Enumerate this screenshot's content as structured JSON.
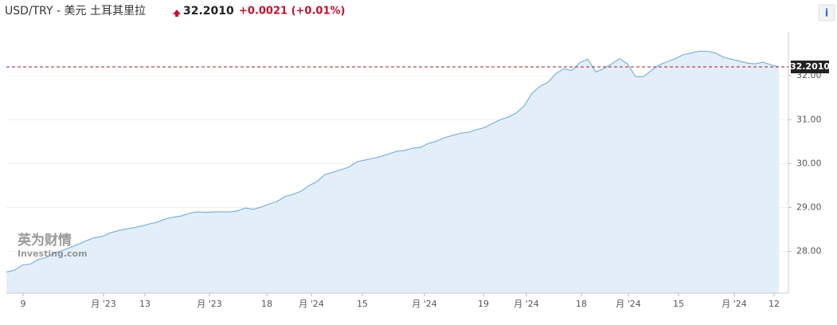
{
  "chart_data": {
    "type": "area",
    "title": "USD/TRY - 美元 土耳其里拉",
    "last_price": {
      "value": 32.201,
      "label": "32.2010"
    },
    "change": "+0.0021 (+0.01%)",
    "info_button": "i",
    "watermark": [
      "英为财情",
      "Investing.com"
    ],
    "color": "#7eb1dd",
    "fill": "#e4eef8",
    "grid": true,
    "x": [
      0,
      1,
      2,
      3,
      4,
      5,
      6,
      7,
      8,
      9,
      10,
      11,
      12,
      13,
      14,
      15,
      16,
      17,
      18,
      19,
      20,
      21,
      22,
      23,
      24,
      25,
      26,
      27,
      28,
      29,
      30,
      31,
      32,
      33,
      34,
      35,
      36,
      37,
      38,
      39,
      40,
      41,
      42,
      43,
      44,
      45,
      46,
      47,
      48,
      49,
      50,
      51,
      52,
      53,
      54,
      55,
      56,
      57,
      58,
      59,
      60,
      61,
      62,
      63,
      64,
      65,
      66,
      67,
      68,
      69,
      70,
      71,
      72,
      73,
      74,
      75,
      76,
      77,
      78,
      79,
      80,
      81,
      82,
      83,
      84,
      85,
      86,
      87,
      88,
      89,
      90,
      91,
      92,
      93,
      94,
      95,
      96,
      97
    ],
    "values": [
      27.53,
      27.57,
      27.69,
      27.71,
      27.82,
      27.86,
      27.96,
      28.02,
      28.09,
      28.16,
      28.24,
      28.31,
      28.34,
      28.42,
      28.47,
      28.51,
      28.54,
      28.58,
      28.63,
      28.67,
      28.74,
      28.78,
      28.81,
      28.87,
      28.9,
      28.89,
      28.9,
      28.9,
      28.9,
      28.92,
      28.99,
      28.96,
      29.01,
      29.08,
      29.14,
      29.25,
      29.3,
      29.37,
      29.5,
      29.59,
      29.75,
      29.8,
      29.86,
      29.92,
      30.04,
      30.08,
      30.12,
      30.16,
      30.22,
      30.28,
      30.3,
      30.35,
      30.37,
      30.46,
      30.51,
      30.59,
      30.64,
      30.69,
      30.71,
      30.77,
      30.82,
      30.91,
      31.0,
      31.06,
      31.15,
      31.31,
      31.6,
      31.76,
      31.85,
      32.05,
      32.16,
      32.12,
      32.3,
      32.38,
      32.09,
      32.16,
      32.27,
      32.39,
      32.27,
      31.98,
      31.98,
      32.12,
      32.25,
      32.32,
      32.39,
      32.48,
      32.52,
      32.56,
      32.56,
      32.52,
      32.43,
      32.38,
      32.34,
      32.29,
      32.27,
      32.31,
      32.25,
      32.2
    ],
    "xlim": [
      0,
      97
    ],
    "xticks": [
      {
        "value": 2.1,
        "label": "9"
      },
      {
        "value": 12.2,
        "label": "月 '23"
      },
      {
        "value": 17.4,
        "label": "13"
      },
      {
        "value": 25.5,
        "label": "月 '23"
      },
      {
        "value": 32.7,
        "label": "18"
      },
      {
        "value": 38.3,
        "label": "月 '24"
      },
      {
        "value": 44.7,
        "label": "15"
      },
      {
        "value": 52.5,
        "label": "月 '24"
      },
      {
        "value": 59.9,
        "label": "19"
      },
      {
        "value": 65.3,
        "label": "月 '24"
      },
      {
        "value": 72.2,
        "label": "18"
      },
      {
        "value": 78.1,
        "label": "月 '24"
      },
      {
        "value": 84.4,
        "label": "15"
      },
      {
        "value": 91.4,
        "label": "月 '24"
      },
      {
        "value": 96.4,
        "label": "12"
      }
    ],
    "ylim": [
      27.05,
      33.0
    ],
    "yticks": [
      {
        "value": 28,
        "label": "28.00"
      },
      {
        "value": 29,
        "label": "29.00"
      },
      {
        "value": 30,
        "label": "30.00"
      },
      {
        "value": 31,
        "label": "31.00"
      },
      {
        "value": 32,
        "label": "32.00"
      }
    ]
  }
}
